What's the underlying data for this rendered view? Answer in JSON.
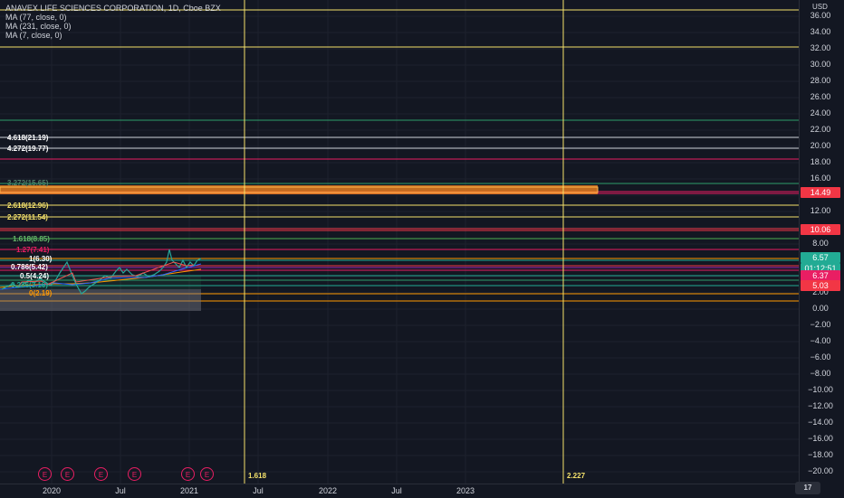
{
  "header": {
    "title": "ANAVEX LIFE SCIENCES CORPORATION, 1D, Cboe BZX",
    "indicators": [
      "MA (77, close, 0)",
      "MA (231, close, 0)",
      "MA (7, close, 0)"
    ]
  },
  "currency": "USD",
  "y_axis_labels": [
    "36.00",
    "34.00",
    "32.00",
    "30.00",
    "28.00",
    "26.00",
    "24.00",
    "22.00",
    "20.00",
    "18.00",
    "16.00",
    "14.00",
    "12.00",
    "10.00",
    "8.00",
    "6.00",
    "4.00",
    "2.00",
    "0.00",
    "−2.00",
    "−4.00",
    "−6.00",
    "−8.00",
    "−10.00",
    "−12.00",
    "−14.00",
    "−16.00",
    "−18.00",
    "−20.00"
  ],
  "x_axis_labels": [
    "2020",
    "Jul",
    "2021",
    "Jul",
    "2022",
    "Jul",
    "2023"
  ],
  "price_tags": {
    "t1": "14.49",
    "t2": "10.06",
    "t3": "6.57",
    "t4": "01:12:51",
    "t5": "6.37",
    "t6": "5.03"
  },
  "tag_colors": {
    "red": "#f23645",
    "green": "#22ab94"
  },
  "fib_labels": {
    "f1": "4.618(21.19)",
    "f2": "4.272(19.77)",
    "f3": "3.272(15.65)",
    "f4": "2.618(12.96)",
    "f5": "2.272(11.54)",
    "f6": "1.618(8.85)",
    "f7": "1.27(7.41)",
    "f8": "1(6.30)",
    "f9": "0.786(5.42)",
    "f10": "0.5(4.24)",
    "f11": "0.236(3.16)",
    "f12": "0(2.19)"
  },
  "earnings_marker": "E",
  "vline_labels": {
    "v1": "1.618",
    "v2": "2.227"
  },
  "tv_logo": "17"
}
